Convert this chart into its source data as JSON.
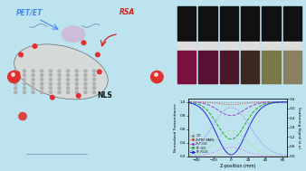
{
  "bg_color": "#bde3ef",
  "chart_bg": "#bde3ef",
  "photo_bg": "#111111",
  "xlim": [
    -50,
    65
  ],
  "ylim_left": [
    0.2,
    1.05
  ],
  "ylim_right": [
    0.0,
    3.6
  ],
  "xlabel": "Z-position (mm)",
  "ylabel_left": "Normalized Transmittance",
  "ylabel_right": "Scattering Signal (a.u)",
  "xticks": [
    -40,
    -20,
    0,
    20,
    40,
    60
  ],
  "yticks_left": [
    0.2,
    0.4,
    0.6,
    0.8,
    1.0
  ],
  "yticks_right": [
    0.0,
    0.6,
    1.2,
    1.8,
    2.4,
    3.0,
    3.6
  ],
  "legend_labels": [
    "GO",
    "ZnTNP-PAES",
    "ZnP-GO",
    "PF-GO",
    "PF-RGO"
  ],
  "legend_colors": [
    "#888888",
    "#cc4444",
    "#9944cc",
    "#22aa22",
    "#2222dd"
  ],
  "legend_styles": [
    ":",
    ":",
    "--",
    "--",
    "-"
  ],
  "trans_params": [
    [
      0.01,
      20,
      "#888888",
      ":"
    ],
    [
      0.04,
      14,
      "#cc4444",
      ":"
    ],
    [
      0.2,
      15,
      "#9944cc",
      "--"
    ],
    [
      0.55,
      16,
      "#22aa22",
      "--"
    ],
    [
      0.78,
      17,
      "#2222dd",
      "-"
    ]
  ],
  "scat_params": [
    [
      0.04,
      20,
      "#cccccc",
      ":"
    ],
    [
      0.15,
      14,
      "#ffbbbb",
      ":"
    ],
    [
      0.55,
      16,
      "#cc99ee",
      "--"
    ],
    [
      1.6,
      18,
      "#99dd99",
      "--"
    ],
    [
      3.05,
      22,
      "#aaaaee",
      "-"
    ]
  ],
  "vial_colors_top": [
    "#111111",
    "#111111",
    "#111111",
    "#111111",
    "#111111",
    "#111111"
  ],
  "vial_colors_bot": [
    "#7a1040",
    "#5a1030",
    "#4a1828",
    "#3a2822",
    "#7a7848",
    "#888060"
  ],
  "title_left": "PET/ET",
  "title_right": "RSA",
  "label_nls": "NLS",
  "graphene_color": "#c0c0c0",
  "graphene_edge": "#404040",
  "bond_color": "#6080b0",
  "red_ball_color": "#e03030",
  "porphyrin_color": "#d06080",
  "arrow_color": "#cc2222"
}
